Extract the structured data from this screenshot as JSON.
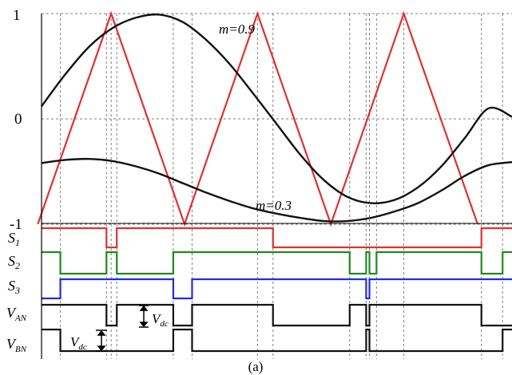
{
  "figure": {
    "caption": "(a)",
    "y_ticks": [
      "1",
      "0",
      "-1"
    ],
    "curve_labels": [
      "m=0.9",
      "m=0.3"
    ],
    "signal_labels": [
      {
        "main": "S",
        "sub": "1"
      },
      {
        "main": "S",
        "sub": "2"
      },
      {
        "main": "S",
        "sub": "3"
      },
      {
        "main": "V",
        "sub": "AN"
      },
      {
        "main": "V",
        "sub": "BN"
      }
    ],
    "annotation": {
      "main": "V",
      "sub": "dc"
    },
    "colors": {
      "carrier": "#e03030",
      "reference": "#111111",
      "s1": "#e03030",
      "s2": "#1f8a1f",
      "s3": "#1f2ee0",
      "output": "#111111",
      "grid": "#7f7f7f"
    }
  },
  "chart_data": {
    "type": "line",
    "xlim": [
      0,
      1
    ],
    "ylim": [
      -1,
      1
    ],
    "carrier": {
      "name": "",
      "shape": "triangle",
      "peaks_x": [
        0.148,
        0.459,
        0.77
      ],
      "troughs_x": [
        -0.008,
        0.304,
        0.615,
        0.927
      ],
      "amplitude": 1
    },
    "series": [
      {
        "name": "m=0.9",
        "amplitude": 0.9,
        "points": [
          [
            0.0,
            0.12
          ],
          [
            0.05,
            0.42
          ],
          [
            0.1,
            0.68
          ],
          [
            0.15,
            0.86
          ],
          [
            0.2,
            0.96
          ],
          [
            0.25,
            0.99
          ],
          [
            0.3,
            0.92
          ],
          [
            0.35,
            0.75
          ],
          [
            0.4,
            0.52
          ],
          [
            0.45,
            0.24
          ],
          [
            0.5,
            -0.05
          ],
          [
            0.55,
            -0.34
          ],
          [
            0.6,
            -0.58
          ],
          [
            0.65,
            -0.74
          ],
          [
            0.7,
            -0.8
          ],
          [
            0.75,
            -0.77
          ],
          [
            0.8,
            -0.65
          ],
          [
            0.85,
            -0.45
          ],
          [
            0.9,
            -0.18
          ],
          [
            0.95,
            0.1
          ],
          [
            1.0,
            0.02
          ]
        ]
      },
      {
        "name": "m=0.3",
        "amplitude": 0.3,
        "points": [
          [
            0.0,
            -0.42
          ],
          [
            0.05,
            -0.39
          ],
          [
            0.1,
            -0.38
          ],
          [
            0.15,
            -0.4
          ],
          [
            0.2,
            -0.45
          ],
          [
            0.25,
            -0.52
          ],
          [
            0.3,
            -0.61
          ],
          [
            0.35,
            -0.7
          ],
          [
            0.4,
            -0.78
          ],
          [
            0.45,
            -0.85
          ],
          [
            0.5,
            -0.9
          ],
          [
            0.55,
            -0.94
          ],
          [
            0.6,
            -0.97
          ],
          [
            0.65,
            -0.97
          ],
          [
            0.7,
            -0.94
          ],
          [
            0.75,
            -0.88
          ],
          [
            0.8,
            -0.8
          ],
          [
            0.85,
            -0.68
          ],
          [
            0.9,
            -0.54
          ],
          [
            0.95,
            -0.44
          ],
          [
            1.0,
            -0.41
          ]
        ]
      }
    ],
    "switching": [
      {
        "name": "S1",
        "high": [
          [
            0,
            0.138
          ],
          [
            0.16,
            0.492
          ],
          [
            0.935,
            1
          ]
        ]
      },
      {
        "name": "S2",
        "high": [
          [
            0,
            0.04
          ],
          [
            0.138,
            0.16
          ],
          [
            0.28,
            0.655
          ],
          [
            0.69,
            0.697
          ],
          [
            0.712,
            0.935
          ],
          [
            0.98,
            1
          ]
        ]
      },
      {
        "name": "S3",
        "high": [
          [
            0.04,
            0.28
          ],
          [
            0.32,
            0.69
          ],
          [
            0.697,
            1
          ]
        ]
      },
      {
        "name": "VAN",
        "high": [
          [
            0,
            0.138
          ],
          [
            0.16,
            0.28
          ],
          [
            0.32,
            0.492
          ],
          [
            0.655,
            0.69
          ],
          [
            0.697,
            0.935
          ]
        ]
      },
      {
        "name": "VBN",
        "high": [
          [
            0,
            0.04
          ],
          [
            0.28,
            0.32
          ],
          [
            0.69,
            0.697
          ],
          [
            0.98,
            1
          ]
        ]
      }
    ]
  }
}
